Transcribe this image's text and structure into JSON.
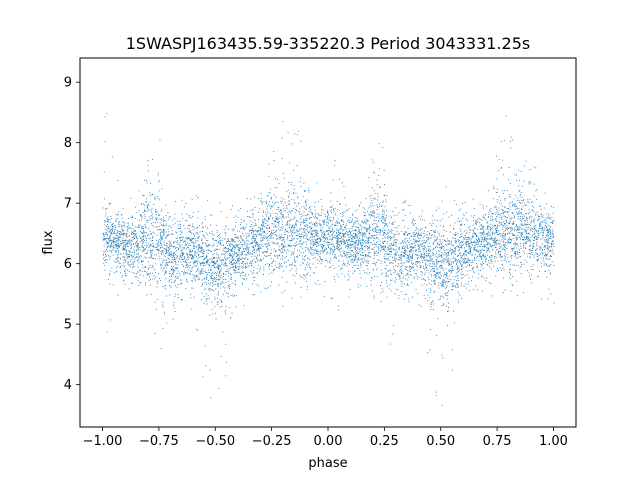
{
  "chart_data": {
    "type": "scatter",
    "title": "1SWASPJ163435.59-335220.3 Period 3043331.25s",
    "xlabel": "phase",
    "ylabel": "flux",
    "xlim": [
      -1.1,
      1.1
    ],
    "ylim": [
      3.3,
      9.4
    ],
    "xticks": [
      -1.0,
      -0.75,
      -0.5,
      -0.25,
      0.0,
      0.25,
      0.5,
      0.75,
      1.0
    ],
    "xtick_labels": [
      "−1.00",
      "−0.75",
      "−0.50",
      "−0.25",
      "0.00",
      "0.25",
      "0.50",
      "0.75",
      "1.00"
    ],
    "yticks": [
      4,
      5,
      6,
      7,
      8,
      9
    ],
    "ytick_labels": [
      "4",
      "5",
      "6",
      "7",
      "8",
      "9"
    ],
    "grid": false,
    "marker_color": "#1f77b4",
    "series": [
      {
        "profile_phase": [
          0.0,
          0.05,
          0.1,
          0.15,
          0.2,
          0.25,
          0.3,
          0.35,
          0.4,
          0.45,
          0.5,
          0.55,
          0.6,
          0.65,
          0.7,
          0.75,
          0.8,
          0.85,
          0.9,
          0.95,
          1.0
        ],
        "profile_median_flux": [
          6.45,
          6.4,
          6.35,
          6.3,
          6.5,
          6.4,
          6.1,
          6.2,
          6.25,
          6.1,
          6.0,
          6.05,
          6.15,
          6.3,
          6.4,
          6.5,
          6.55,
          6.6,
          6.5,
          6.4,
          6.45
        ],
        "profile_spread": [
          0.35,
          0.3,
          0.35,
          0.35,
          0.6,
          0.5,
          0.35,
          0.35,
          0.35,
          0.4,
          0.45,
          0.4,
          0.35,
          0.35,
          0.4,
          0.45,
          0.5,
          0.5,
          0.45,
          0.35,
          0.35
        ],
        "upper_envelope": [
          9.1,
          7.6,
          7.2,
          7.0,
          8.0,
          8.5,
          7.0,
          7.1,
          7.1,
          7.2,
          7.5,
          7.1,
          7.0,
          7.3,
          7.7,
          8.1,
          8.6,
          8.3,
          8.0,
          7.5,
          7.2
        ],
        "lower_envelope": [
          4.4,
          5.2,
          5.5,
          5.4,
          5.5,
          4.3,
          5.0,
          5.4,
          5.2,
          4.0,
          3.6,
          4.2,
          5.2,
          5.4,
          5.5,
          5.4,
          5.3,
          5.4,
          5.5,
          5.3,
          5.3
        ],
        "point_count": 7000
      }
    ]
  }
}
